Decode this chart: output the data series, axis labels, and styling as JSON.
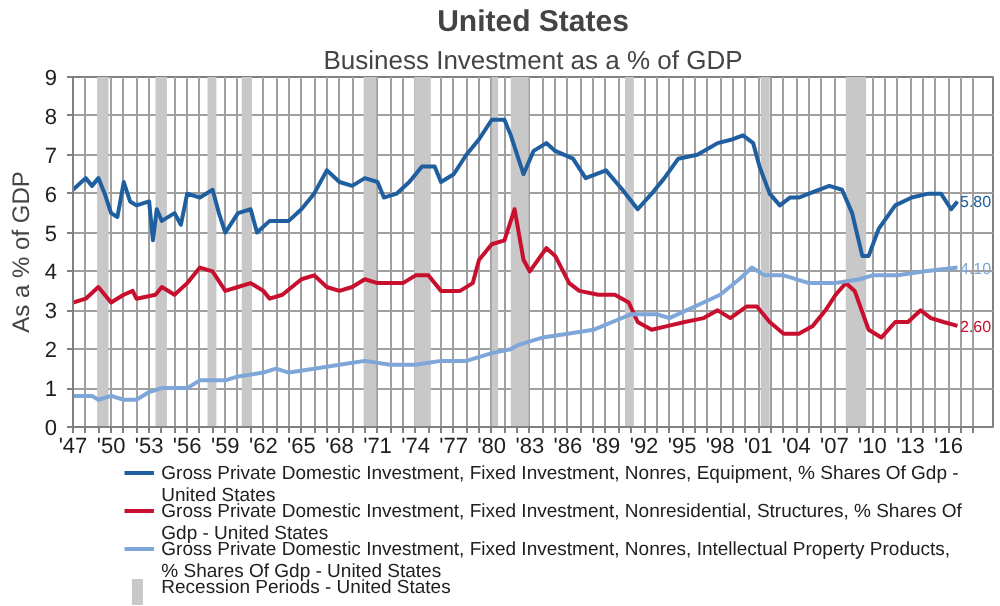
{
  "chart_data": {
    "type": "line",
    "title": "United States",
    "subtitle": "Business Investment as a % of GDP",
    "ylabel": "As a % of GDP",
    "xlim": [
      1947,
      2019.5
    ],
    "xticks": [
      {
        "value": 1947,
        "label": "'47"
      },
      {
        "value": 1948,
        "label": null
      },
      {
        "value": 1949,
        "label": null
      },
      {
        "value": 1950,
        "label": "'50"
      },
      {
        "value": 1951,
        "label": null
      },
      {
        "value": 1952,
        "label": null
      },
      {
        "value": 1953,
        "label": "'53"
      },
      {
        "value": 1954,
        "label": null
      },
      {
        "value": 1955,
        "label": null
      },
      {
        "value": 1956,
        "label": "'56"
      },
      {
        "value": 1957,
        "label": null
      },
      {
        "value": 1958,
        "label": null
      },
      {
        "value": 1959,
        "label": "'59"
      },
      {
        "value": 1960,
        "label": null
      },
      {
        "value": 1961,
        "label": null
      },
      {
        "value": 1962,
        "label": "'62"
      },
      {
        "value": 1963,
        "label": null
      },
      {
        "value": 1964,
        "label": null
      },
      {
        "value": 1965,
        "label": "'65"
      },
      {
        "value": 1966,
        "label": null
      },
      {
        "value": 1967,
        "label": null
      },
      {
        "value": 1968,
        "label": "'68"
      },
      {
        "value": 1969,
        "label": null
      },
      {
        "value": 1970,
        "label": null
      },
      {
        "value": 1971,
        "label": "'71"
      },
      {
        "value": 1972,
        "label": null
      },
      {
        "value": 1973,
        "label": null
      },
      {
        "value": 1974,
        "label": "'74"
      },
      {
        "value": 1975,
        "label": null
      },
      {
        "value": 1976,
        "label": null
      },
      {
        "value": 1977,
        "label": "'77"
      },
      {
        "value": 1978,
        "label": null
      },
      {
        "value": 1979,
        "label": null
      },
      {
        "value": 1980,
        "label": "'80"
      },
      {
        "value": 1981,
        "label": null
      },
      {
        "value": 1982,
        "label": null
      },
      {
        "value": 1983,
        "label": "'83"
      },
      {
        "value": 1984,
        "label": null
      },
      {
        "value": 1985,
        "label": null
      },
      {
        "value": 1986,
        "label": "'86"
      },
      {
        "value": 1987,
        "label": null
      },
      {
        "value": 1988,
        "label": null
      },
      {
        "value": 1989,
        "label": "'89"
      },
      {
        "value": 1990,
        "label": null
      },
      {
        "value": 1991,
        "label": null
      },
      {
        "value": 1992,
        "label": "'92"
      },
      {
        "value": 1993,
        "label": null
      },
      {
        "value": 1994,
        "label": null
      },
      {
        "value": 1995,
        "label": "'95"
      },
      {
        "value": 1996,
        "label": null
      },
      {
        "value": 1997,
        "label": null
      },
      {
        "value": 1998,
        "label": "'98"
      },
      {
        "value": 1999,
        "label": null
      },
      {
        "value": 2000,
        "label": null
      },
      {
        "value": 2001,
        "label": "'01"
      },
      {
        "value": 2002,
        "label": null
      },
      {
        "value": 2003,
        "label": null
      },
      {
        "value": 2004,
        "label": "'04"
      },
      {
        "value": 2005,
        "label": null
      },
      {
        "value": 2006,
        "label": null
      },
      {
        "value": 2007,
        "label": "'07"
      },
      {
        "value": 2008,
        "label": null
      },
      {
        "value": 2009,
        "label": null
      },
      {
        "value": 2010,
        "label": "'10"
      },
      {
        "value": 2011,
        "label": null
      },
      {
        "value": 2012,
        "label": null
      },
      {
        "value": 2013,
        "label": "'13"
      },
      {
        "value": 2014,
        "label": null
      },
      {
        "value": 2015,
        "label": null
      },
      {
        "value": 2016,
        "label": "'16"
      },
      {
        "value": 2017,
        "label": null
      },
      {
        "value": 2018,
        "label": null
      }
    ],
    "ylim": [
      0,
      9
    ],
    "yticks": [
      0,
      1,
      2,
      3,
      4,
      5,
      6,
      7,
      8,
      9
    ],
    "grid": true,
    "legend": "bottom",
    "line_style": "solid",
    "series": [
      {
        "name": "Gross Private Domestic Investment, Fixed Investment, Nonres, Equipment, % Shares Of Gdp - United States",
        "color": "#1f5fa0",
        "x": [
          1947,
          1948,
          1948.5,
          1949,
          1949.5,
          1950,
          1950.5,
          1951,
          1951.5,
          1952,
          1953,
          1953.3,
          1953.6,
          1954,
          1955,
          1955.5,
          1956,
          1957,
          1958,
          1958.5,
          1959,
          1960,
          1961,
          1961.5,
          1962.5,
          1964,
          1965,
          1966,
          1967,
          1968,
          1969,
          1970,
          1971,
          1971.5,
          1972.5,
          1973.5,
          1974.5,
          1975.5,
          1976,
          1977,
          1978,
          1979,
          1980,
          1981,
          1981.5,
          1982.5,
          1983.3,
          1984.3,
          1985,
          1986.4,
          1987.4,
          1989,
          1990.3,
          1991.5,
          1992.6,
          1993.6,
          1994.7,
          1996.2,
          1997.8,
          1999,
          1999.8,
          2000.6,
          2001.1,
          2001.9,
          2002.7,
          2003.5,
          2004.2,
          2005,
          2006.6,
          2007.6,
          2008.4,
          2009.2,
          2009.7,
          2010.5,
          2011.8,
          2013.1,
          2014.4,
          2015.4,
          2016.2,
          2016.7
        ],
        "values": [
          6.1,
          6.4,
          6.2,
          6.4,
          6.0,
          5.5,
          5.4,
          6.3,
          5.8,
          5.7,
          5.8,
          4.8,
          5.6,
          5.3,
          5.5,
          5.2,
          6.0,
          5.9,
          6.1,
          5.5,
          5.0,
          5.5,
          5.6,
          5.0,
          5.3,
          5.3,
          5.6,
          6.0,
          6.6,
          6.3,
          6.2,
          6.4,
          6.3,
          5.9,
          6.0,
          6.3,
          6.7,
          6.7,
          6.3,
          6.5,
          7.0,
          7.4,
          7.9,
          7.9,
          7.5,
          6.5,
          7.1,
          7.3,
          7.1,
          6.9,
          6.4,
          6.6,
          6.1,
          5.6,
          6.0,
          6.4,
          6.9,
          7.0,
          7.3,
          7.4,
          7.5,
          7.3,
          6.7,
          6.0,
          5.7,
          5.9,
          5.9,
          6.0,
          6.2,
          6.1,
          5.5,
          4.4,
          4.4,
          5.1,
          5.7,
          5.9,
          6.0,
          6.0,
          5.6,
          5.8
        ],
        "value_labels": [
          null,
          null,
          null,
          null,
          null,
          null,
          null,
          null,
          null,
          null,
          null,
          null,
          null,
          null,
          null,
          null,
          null,
          null,
          null,
          null,
          null,
          null,
          null,
          null,
          null,
          null,
          null,
          null,
          null,
          null,
          null,
          null,
          null,
          null,
          null,
          null,
          null,
          null,
          null,
          null,
          null,
          null,
          null,
          null,
          null,
          null,
          null,
          null,
          null,
          null,
          null,
          null,
          null,
          null,
          null,
          null,
          null,
          null,
          null,
          null,
          null,
          null,
          null,
          null,
          null,
          null,
          null,
          null,
          null,
          null,
          null,
          null,
          null,
          null,
          null,
          null,
          null,
          null,
          null,
          "5.80"
        ]
      },
      {
        "name": "Gross Private Domestic Investment, Fixed Investment, Nonresidential, Structures, % Shares Of Gdp - United States",
        "color": "#c8102e",
        "x": [
          1947,
          1948,
          1949,
          1950,
          1951,
          1951.7,
          1952,
          1953.5,
          1954,
          1955,
          1956,
          1957,
          1958,
          1959,
          1960,
          1961,
          1962,
          1962.5,
          1963.5,
          1965,
          1966,
          1967,
          1968,
          1969,
          1970,
          1971,
          1972,
          1973,
          1974,
          1975,
          1976,
          1977.5,
          1978.5,
          1979,
          1980,
          1981,
          1981.8,
          1982.5,
          1983,
          1984.3,
          1985,
          1986.1,
          1986.9,
          1988.4,
          1989.7,
          1990.8,
          1991.5,
          1992.6,
          1993.9,
          1995.2,
          1996.7,
          1997.8,
          1998.8,
          2000.1,
          2000.9,
          2001.9,
          2003,
          2004.2,
          2005.3,
          2006.3,
          2007.1,
          2007.9,
          2008.6,
          2009.7,
          2010.7,
          2011.8,
          2012.8,
          2013.8,
          2014.6,
          2015.6,
          2016.7
        ],
        "values": [
          3.2,
          3.3,
          3.6,
          3.2,
          3.4,
          3.5,
          3.3,
          3.4,
          3.6,
          3.4,
          3.7,
          4.1,
          4.0,
          3.5,
          3.6,
          3.7,
          3.5,
          3.3,
          3.4,
          3.8,
          3.9,
          3.6,
          3.5,
          3.6,
          3.8,
          3.7,
          3.7,
          3.7,
          3.9,
          3.9,
          3.5,
          3.5,
          3.7,
          4.3,
          4.7,
          4.8,
          5.6,
          4.3,
          4.0,
          4.6,
          4.4,
          3.7,
          3.5,
          3.4,
          3.4,
          3.2,
          2.7,
          2.5,
          2.6,
          2.7,
          2.8,
          3.0,
          2.8,
          3.1,
          3.1,
          2.7,
          2.4,
          2.4,
          2.6,
          3.0,
          3.4,
          3.7,
          3.5,
          2.5,
          2.3,
          2.7,
          2.7,
          3.0,
          2.8,
          2.7,
          2.6
        ],
        "value_labels": [
          null,
          null,
          null,
          null,
          null,
          null,
          null,
          null,
          null,
          null,
          null,
          null,
          null,
          null,
          null,
          null,
          null,
          null,
          null,
          null,
          null,
          null,
          null,
          null,
          null,
          null,
          null,
          null,
          null,
          null,
          null,
          null,
          null,
          null,
          null,
          null,
          null,
          null,
          null,
          null,
          null,
          null,
          null,
          null,
          null,
          null,
          null,
          null,
          null,
          null,
          null,
          null,
          null,
          null,
          null,
          null,
          null,
          null,
          null,
          null,
          null,
          null,
          null,
          null,
          null,
          null,
          null,
          null,
          null,
          null,
          "2.60"
        ]
      },
      {
        "name": "Gross Private Domestic Investment, Fixed Investment, Nonres, Intellectual Property Products, % Shares Of Gdp - United States",
        "color": "#7ea6d8",
        "x": [
          1947,
          1948.5,
          1949,
          1950,
          1951,
          1952,
          1953,
          1954,
          1956,
          1957,
          1959,
          1960,
          1962,
          1963,
          1964,
          1966,
          1968,
          1970,
          1972,
          1974,
          1976,
          1978,
          1980,
          1981.5,
          1982,
          1983,
          1984,
          1986,
          1988,
          1989.5,
          1991,
          1993,
          1994,
          1996,
          1998,
          1999.5,
          2000.5,
          2001.5,
          2003,
          2005,
          2007,
          2009,
          2010,
          2012,
          2014,
          2016.7
        ],
        "values": [
          0.8,
          0.8,
          0.7,
          0.8,
          0.7,
          0.7,
          0.9,
          1.0,
          1.0,
          1.2,
          1.2,
          1.3,
          1.4,
          1.5,
          1.4,
          1.5,
          1.6,
          1.7,
          1.6,
          1.6,
          1.7,
          1.7,
          1.9,
          2.0,
          2.1,
          2.2,
          2.3,
          2.4,
          2.5,
          2.7,
          2.9,
          2.9,
          2.8,
          3.1,
          3.4,
          3.8,
          4.1,
          3.9,
          3.9,
          3.7,
          3.7,
          3.8,
          3.9,
          3.9,
          4.0,
          4.1
        ],
        "value_labels": [
          null,
          null,
          null,
          null,
          null,
          null,
          null,
          null,
          null,
          null,
          null,
          null,
          null,
          null,
          null,
          null,
          null,
          null,
          null,
          null,
          null,
          null,
          null,
          null,
          null,
          null,
          null,
          null,
          null,
          null,
          null,
          null,
          null,
          null,
          null,
          null,
          null,
          null,
          null,
          null,
          null,
          null,
          null,
          null,
          null,
          "4.10"
        ]
      }
    ],
    "bands": [
      {
        "axis": "x",
        "from": 1948.9,
        "to": 1949.8,
        "color": "#c8c8c8",
        "label": "Recession Periods - United States"
      },
      {
        "axis": "x",
        "from": 1953.5,
        "to": 1954.4,
        "color": "#c8c8c8"
      },
      {
        "axis": "x",
        "from": 1957.6,
        "to": 1958.3,
        "color": "#c8c8c8"
      },
      {
        "axis": "x",
        "from": 1960.3,
        "to": 1961.1,
        "color": "#c8c8c8"
      },
      {
        "axis": "x",
        "from": 1969.9,
        "to": 1970.9,
        "color": "#c8c8c8"
      },
      {
        "axis": "x",
        "from": 1973.9,
        "to": 1975.2,
        "color": "#c8c8c8"
      },
      {
        "axis": "x",
        "from": 1980.0,
        "to": 1980.5,
        "color": "#c8c8c8"
      },
      {
        "axis": "x",
        "from": 1981.5,
        "to": 1982.9,
        "color": "#c8c8c8"
      },
      {
        "axis": "x",
        "from": 1990.5,
        "to": 1991.2,
        "color": "#c8c8c8"
      },
      {
        "axis": "x",
        "from": 2001.2,
        "to": 2001.9,
        "color": "#c8c8c8"
      },
      {
        "axis": "x",
        "from": 2007.9,
        "to": 2009.5,
        "color": "#c8c8c8"
      }
    ]
  }
}
